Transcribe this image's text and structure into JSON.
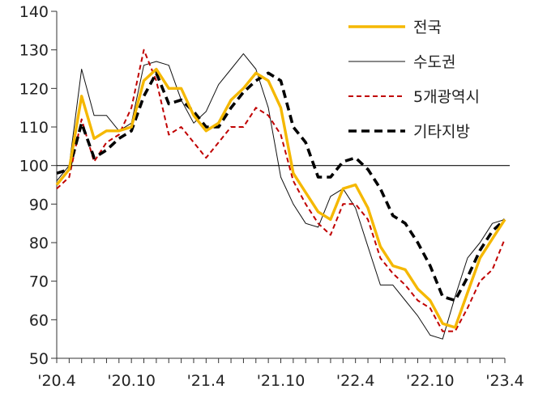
{
  "chart_data": {
    "type": "line",
    "x": [
      "'20.4",
      "'20.5",
      "'20.6",
      "'20.7",
      "'20.8",
      "'20.9",
      "'20.10",
      "'20.11",
      "'20.12",
      "'21.1",
      "'21.2",
      "'21.3",
      "'21.4",
      "'21.5",
      "'21.6",
      "'21.7",
      "'21.8",
      "'21.9",
      "'21.10",
      "'21.11",
      "'21.12",
      "'22.1",
      "'22.2",
      "'22.3",
      "'22.4",
      "'22.5",
      "'22.6",
      "'22.7",
      "'22.8",
      "'22.9",
      "'22.10",
      "'22.11",
      "'22.12",
      "'23.1",
      "'23.2",
      "'23.3",
      "'23.4"
    ],
    "xticks": [
      "'20.4",
      "'20.10",
      "'21.4",
      "'21.10",
      "'22.4",
      "'22.10",
      "'23.4"
    ],
    "ylim": [
      50,
      140
    ],
    "yticks": [
      50,
      60,
      70,
      80,
      90,
      100,
      110,
      120,
      130,
      140
    ],
    "reference_line": 100,
    "legend_position": "top-right",
    "series": [
      {
        "name": "전국",
        "color": "#f5b800",
        "style": "solid-thick",
        "values": [
          95,
          99,
          118,
          107,
          109,
          109,
          110,
          122,
          125,
          120,
          120,
          113,
          109,
          111,
          117,
          120,
          124,
          122,
          115,
          98,
          93,
          88,
          86,
          94,
          95,
          89,
          79,
          74,
          73,
          68,
          65,
          59,
          58,
          67,
          76,
          81,
          86
        ]
      },
      {
        "name": "수도권",
        "color": "#111111",
        "style": "solid-thin",
        "values": [
          96,
          100,
          125,
          113,
          113,
          109,
          111,
          126,
          127,
          126,
          117,
          111,
          114,
          121,
          125,
          129,
          125,
          115,
          97,
          90,
          85,
          84,
          92,
          94,
          89,
          79,
          69,
          69,
          65,
          61,
          56,
          55,
          66,
          76,
          80,
          85,
          86
        ]
      },
      {
        "name": "5개광역시",
        "color": "#c00000",
        "style": "dashed-thin",
        "values": [
          94,
          97,
          112,
          101,
          106,
          108,
          115,
          130,
          122,
          108,
          110,
          106,
          102,
          106,
          110,
          110,
          115,
          113,
          108,
          96,
          90,
          85,
          82,
          90,
          90,
          86,
          76,
          72,
          69,
          65,
          63,
          57,
          57,
          63,
          70,
          73,
          81
        ]
      },
      {
        "name": "기타지방",
        "color": "#000000",
        "style": "dashed-thick",
        "values": [
          98,
          99,
          111,
          102,
          104,
          107,
          109,
          118,
          124,
          116,
          117,
          114,
          110,
          110,
          115,
          119,
          122,
          124,
          122,
          110,
          106,
          97,
          97,
          101,
          102,
          99,
          94,
          87,
          85,
          80,
          74,
          66,
          65,
          71,
          78,
          83,
          86
        ]
      }
    ]
  }
}
